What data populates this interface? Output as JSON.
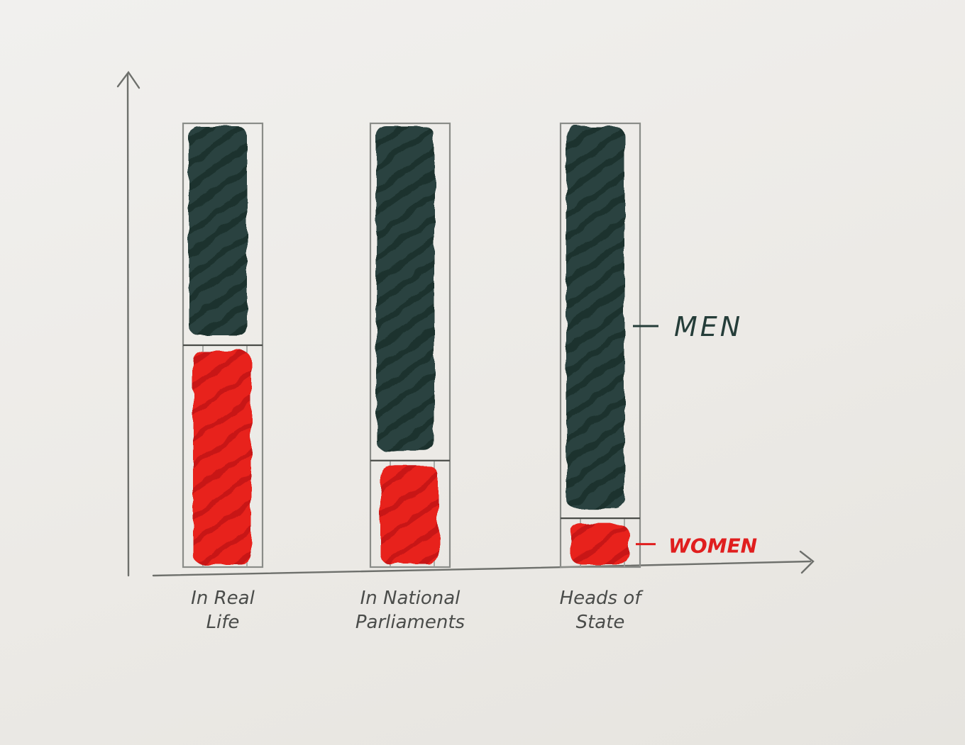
{
  "chart_data": {
    "type": "bar",
    "stacked": true,
    "categories": [
      "In Real Life",
      "In National Parliaments",
      "Heads of State"
    ],
    "series": [
      {
        "name": "WOMEN",
        "values": [
          50,
          24,
          11
        ],
        "color": "#e01e1e"
      },
      {
        "name": "MEN",
        "values": [
          50,
          76,
          89
        ],
        "color": "#253d39"
      }
    ],
    "ylim": [
      0,
      100
    ],
    "grid": false,
    "legend": "inline-right",
    "xlabel": "",
    "ylabel": ""
  }
}
